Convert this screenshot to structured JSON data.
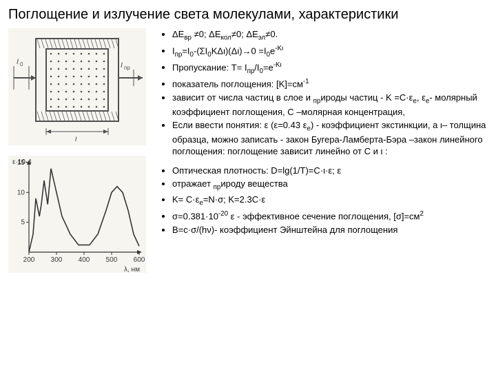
{
  "title": "Поглощение и излучение света молекулами, характеристики",
  "bullets_top": [
    "ΔEвр ≠0; ΔEкол≠0; ΔEэл≠0.",
    "Iпр=I0-(ΣI0KΔι)(Δι)→0 =I0e-Kι",
    "Пропускание: T= Iпр/I0=e-Kι",
    "показатель поглощения: [K]=см-1",
    "зависит от числа частиц в слое и природы частиц - K =C·εe, εe- молярный коэффициент поглощения, C –молярная концентрация,",
    "Если ввести понятия: ε (ε=0.43 εe) - коэффициент экстинкции, а ι– толщина образца, можно записать - закон Бугера-Ламберта-Бэра –закон линейного поглощения: поглощение зависит линейно от C и ι :"
  ],
  "bullets_bottom": [
    "Оптическая плотность: D=lg(1/T)=C·ι·ε; ε",
    "отражает природу вещества",
    "K= С·εe=N·σ; K=2.3С·ε",
    "σ=0.381·10-20 ε - эффективное сечение поглощения, [σ]=см2",
    "B=c·σ/(hν)- коэффициент Эйнштейна для поглощения"
  ],
  "diagram": {
    "labels": {
      "I0": "I0",
      "Ipr": "Iпр",
      "thickness": "ι"
    },
    "stroke": "#505050",
    "dot_color": "#505050",
    "bg": "#f7f5f0"
  },
  "chart": {
    "type": "line",
    "xlabel": "λ, нм",
    "ylabel": "ε·10-4",
    "xlim": [
      200,
      600
    ],
    "ylim": [
      0,
      15
    ],
    "xticks": [
      200,
      300,
      400,
      500,
      600
    ],
    "yticks": [
      5,
      10,
      15
    ],
    "points": [
      [
        200,
        0
      ],
      [
        215,
        3
      ],
      [
        225,
        9
      ],
      [
        238,
        6
      ],
      [
        245,
        8
      ],
      [
        255,
        12
      ],
      [
        268,
        8
      ],
      [
        280,
        14
      ],
      [
        300,
        10
      ],
      [
        320,
        6
      ],
      [
        350,
        3
      ],
      [
        380,
        1.2
      ],
      [
        420,
        1.2
      ],
      [
        450,
        3
      ],
      [
        480,
        7
      ],
      [
        500,
        10
      ],
      [
        520,
        11
      ],
      [
        540,
        10
      ],
      [
        560,
        7
      ],
      [
        580,
        3
      ],
      [
        600,
        1
      ]
    ],
    "stroke": "#353535",
    "bg": "#f7f5f0",
    "axis_color": "#353535",
    "label_fontsize": 10
  }
}
